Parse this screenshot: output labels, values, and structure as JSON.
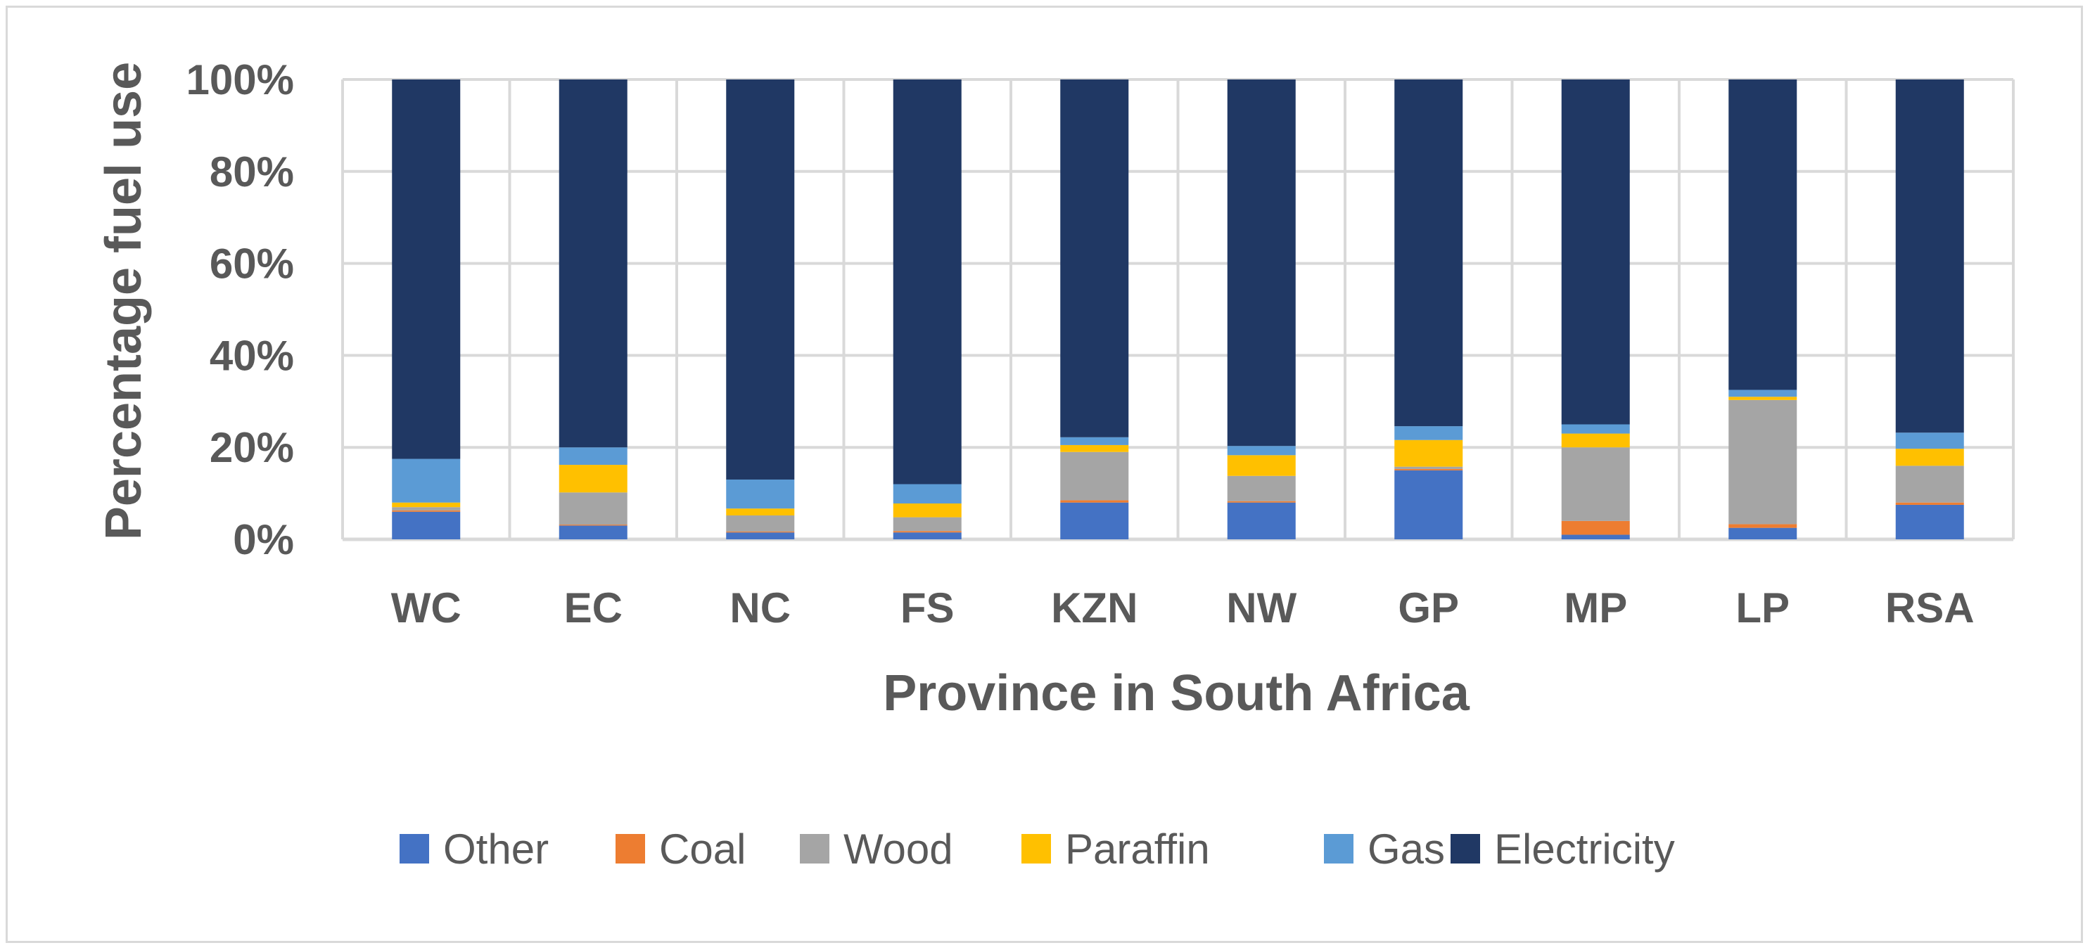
{
  "chart_data": {
    "type": "bar",
    "stacked": true,
    "percent": true,
    "title": "",
    "xlabel": "Province in South Africa",
    "ylabel": "Percentage fuel use",
    "ylim": [
      0,
      100
    ],
    "yticks": [
      "0%",
      "20%",
      "40%",
      "60%",
      "80%",
      "100%"
    ],
    "grid": true,
    "legend_position": "bottom",
    "categories": [
      "WC",
      "EC",
      "NC",
      "FS",
      "KZN",
      "NW",
      "GP",
      "MP",
      "LP",
      "RSA"
    ],
    "series": [
      {
        "name": "Other",
        "color": "#4472C4",
        "values": [
          6,
          3,
          1.5,
          1.5,
          8,
          8,
          15,
          1,
          2.5,
          7.5
        ]
      },
      {
        "name": "Coal",
        "color": "#ED7D31",
        "values": [
          0.3,
          0.2,
          0.2,
          0.3,
          0.5,
          0.3,
          0.3,
          3,
          0.8,
          0.5
        ]
      },
      {
        "name": "Wood",
        "color": "#A5A5A5",
        "values": [
          0.7,
          7,
          3.5,
          3,
          10.5,
          5.5,
          0.5,
          16,
          27,
          8
        ]
      },
      {
        "name": "Paraffin",
        "color": "#FFC000",
        "values": [
          1,
          6,
          1.5,
          3,
          1.5,
          4.5,
          5.8,
          3,
          0.7,
          3.7
        ]
      },
      {
        "name": "Gas",
        "color": "#5B9BD5",
        "values": [
          9.5,
          3.8,
          6.3,
          4.2,
          1.7,
          2,
          3,
          2,
          1.5,
          3.5
        ]
      },
      {
        "name": "Electricity",
        "color": "#203864",
        "values": [
          82.5,
          80,
          87,
          88,
          77.8,
          79.7,
          75.4,
          75,
          67.5,
          76.8
        ]
      }
    ]
  },
  "colors": {
    "grid": "#d9d9d9",
    "text": "#595959",
    "frame": "#d9d9d9"
  }
}
